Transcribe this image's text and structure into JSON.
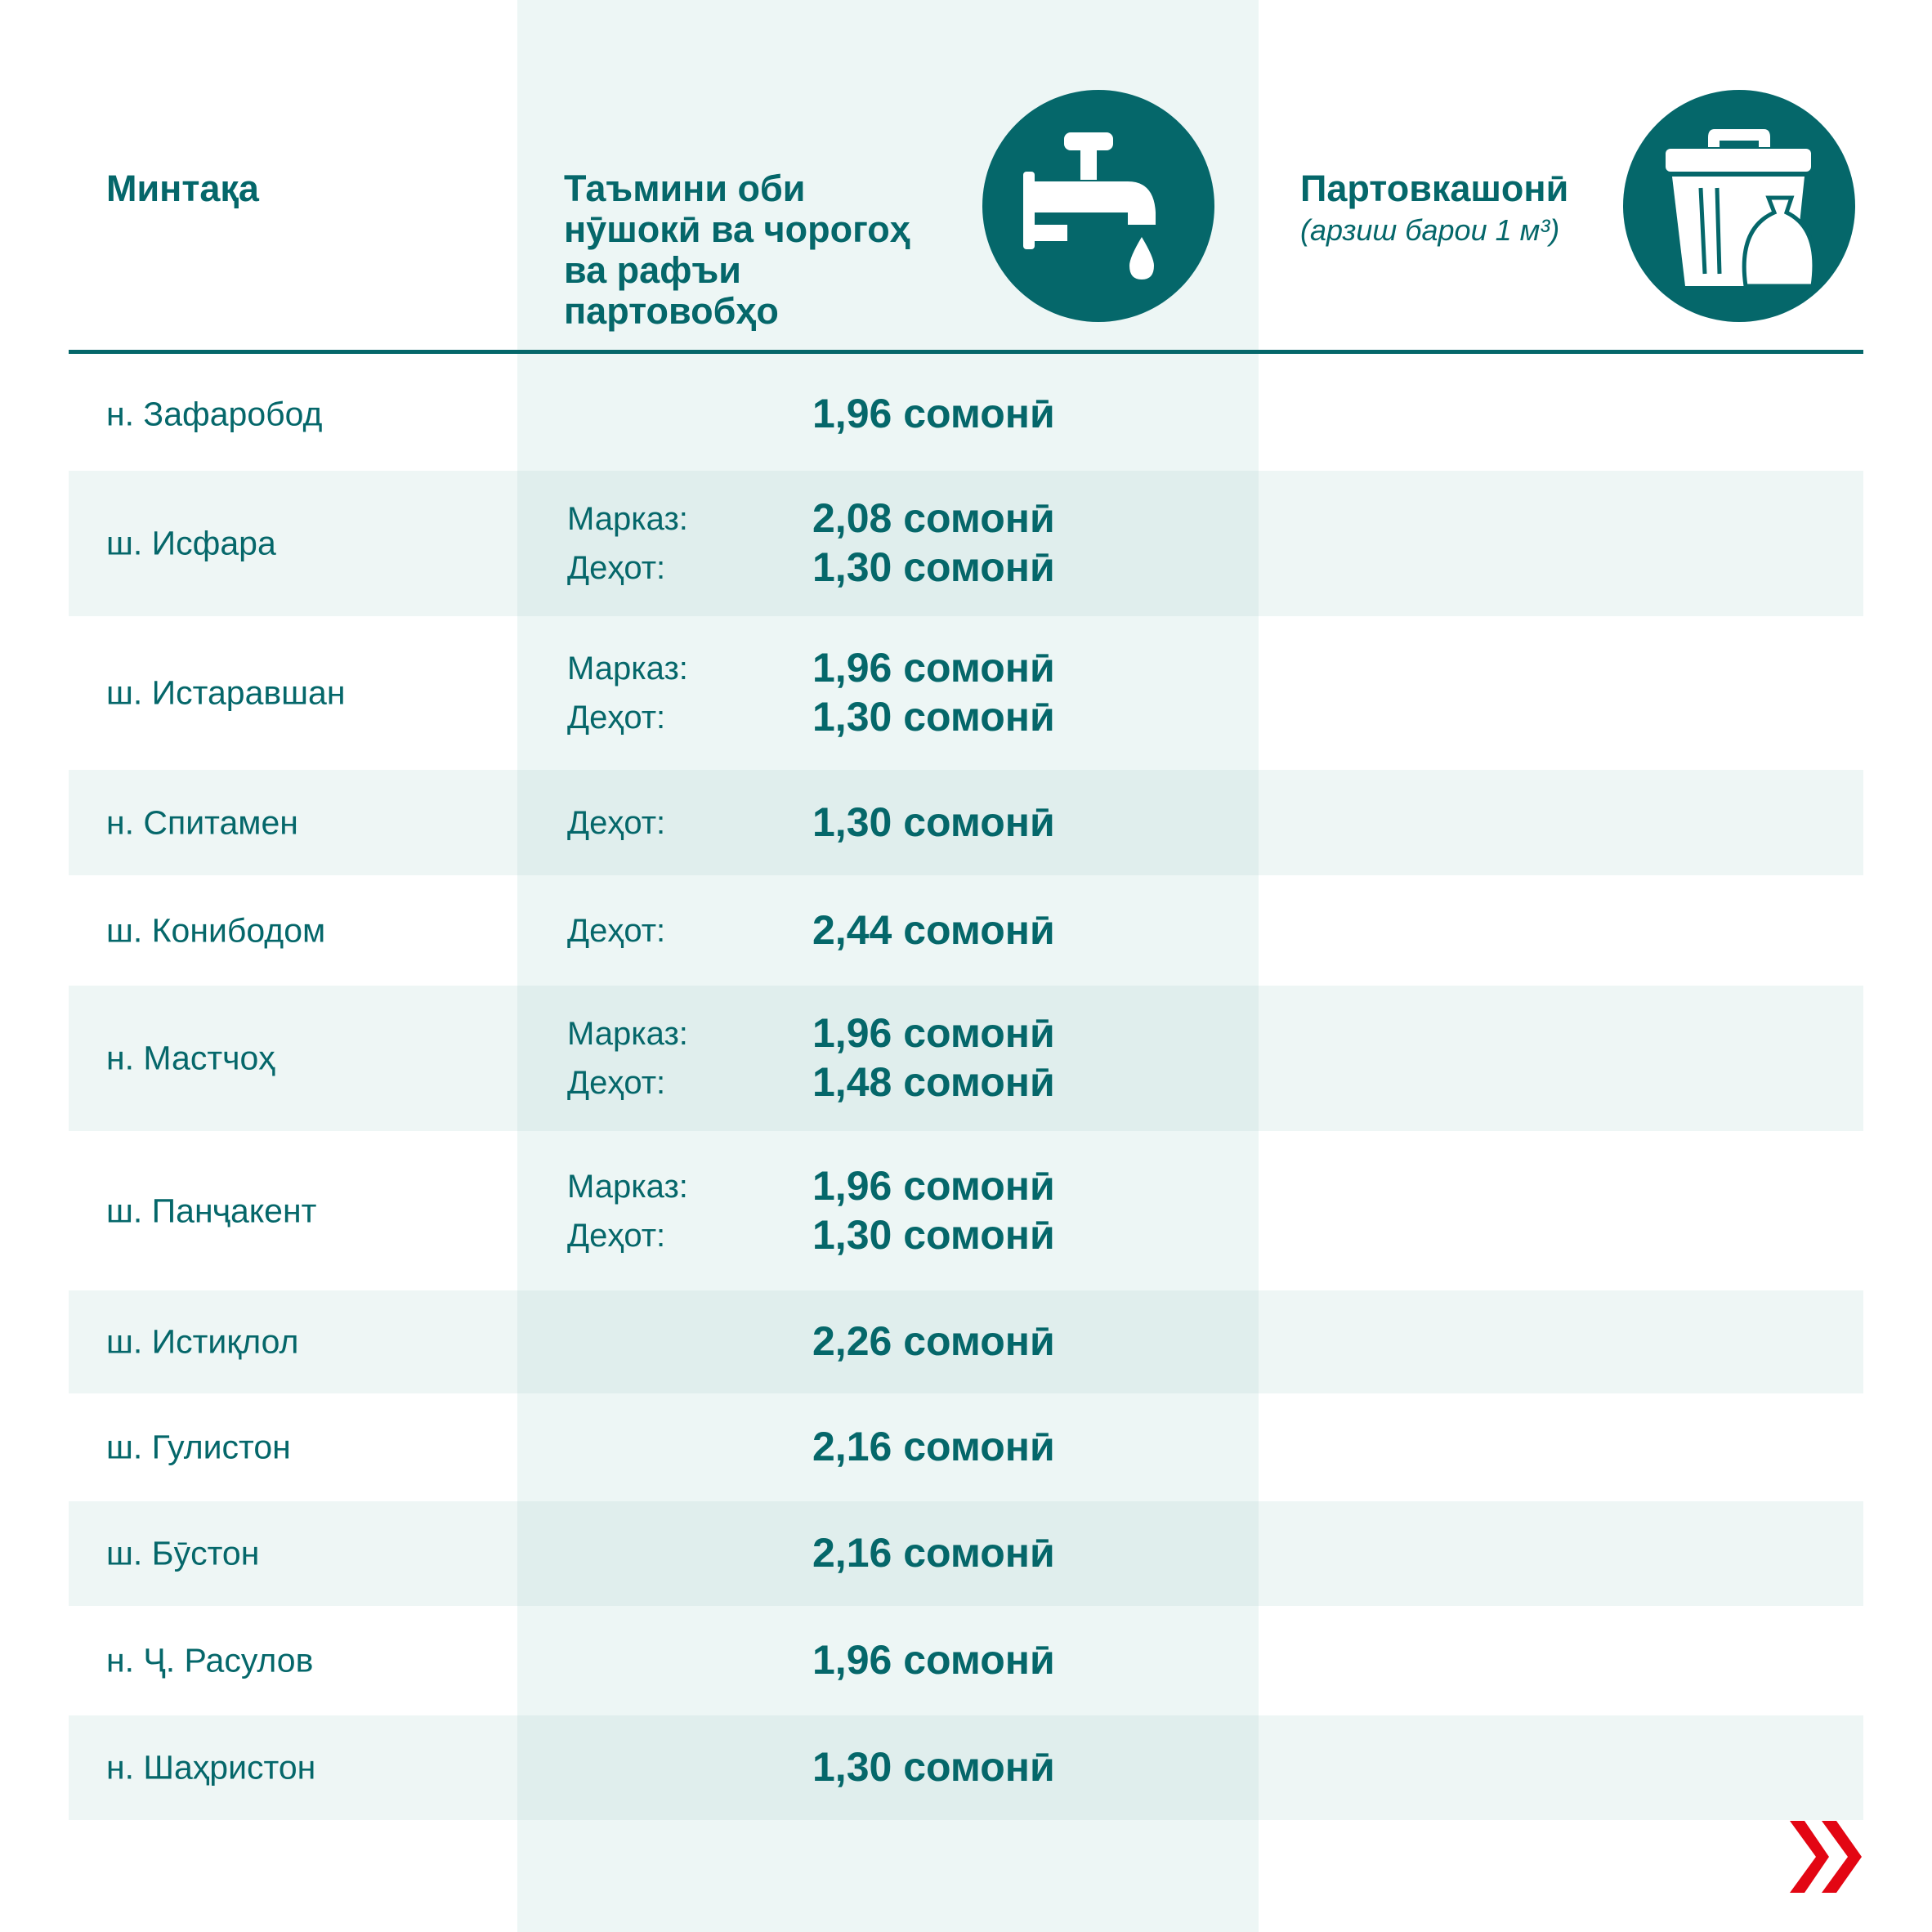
{
  "header": {
    "region": "Минтақа",
    "water": [
      "Таъмини оби",
      "нӯшокӣ ва чорогоҳ",
      "ва рафъи",
      "партовобҳо"
    ],
    "waste": "Партовкашонӣ",
    "waste_sub": "(арзиш барои 1 м³)",
    "icons": [
      "water-tap-icon",
      "trash-bin-icon"
    ]
  },
  "colors": {
    "accent": "#05676a",
    "column": "#edf6f5",
    "shade": "#eef6f5",
    "arrow": "#e30613"
  },
  "rows": [
    {
      "region": "н. Зафаробод",
      "lines": [
        {
          "label": "",
          "value": "1,96 сомонӣ"
        }
      ]
    },
    {
      "region": "ш. Исфара",
      "lines": [
        {
          "label": "Марказ:",
          "value": "2,08 сомонӣ"
        },
        {
          "label": "Деҳот:",
          "value": "1,30 сомонӣ"
        }
      ]
    },
    {
      "region": "ш. Истаравшан",
      "lines": [
        {
          "label": "Марказ:",
          "value": "1,96 сомонӣ"
        },
        {
          "label": "Деҳот:",
          "value": "1,30 сомонӣ"
        }
      ]
    },
    {
      "region": "н. Спитамен",
      "lines": [
        {
          "label": "Деҳот:",
          "value": "1,30 сомонӣ"
        }
      ]
    },
    {
      "region": "ш. Конибодом",
      "lines": [
        {
          "label": "Деҳот:",
          "value": "2,44 сомонӣ"
        }
      ]
    },
    {
      "region": "н. Мастчоҳ",
      "lines": [
        {
          "label": "Марказ:",
          "value": "1,96 сомонӣ"
        },
        {
          "label": "Деҳот:",
          "value": "1,48 сомонӣ"
        }
      ]
    },
    {
      "region": "ш. Панҷакент",
      "lines": [
        {
          "label": "Марказ:",
          "value": "1,96 сомонӣ"
        },
        {
          "label": "Деҳот:",
          "value": "1,30 сомонӣ"
        }
      ]
    },
    {
      "region": "ш. Истиқлол",
      "lines": [
        {
          "label": "",
          "value": "2,26 сомонӣ"
        }
      ]
    },
    {
      "region": "ш. Гулистон",
      "lines": [
        {
          "label": "",
          "value": "2,16 сомонӣ"
        }
      ]
    },
    {
      "region": "ш. Бӯстон",
      "lines": [
        {
          "label": "",
          "value": "2,16 сомонӣ"
        }
      ]
    },
    {
      "region": "н. Ҷ. Расулов",
      "lines": [
        {
          "label": "",
          "value": "1,96 сомонӣ"
        }
      ]
    },
    {
      "region": "н. Шаҳристон",
      "lines": [
        {
          "label": "",
          "value": "1,30 сомонӣ"
        }
      ]
    }
  ]
}
